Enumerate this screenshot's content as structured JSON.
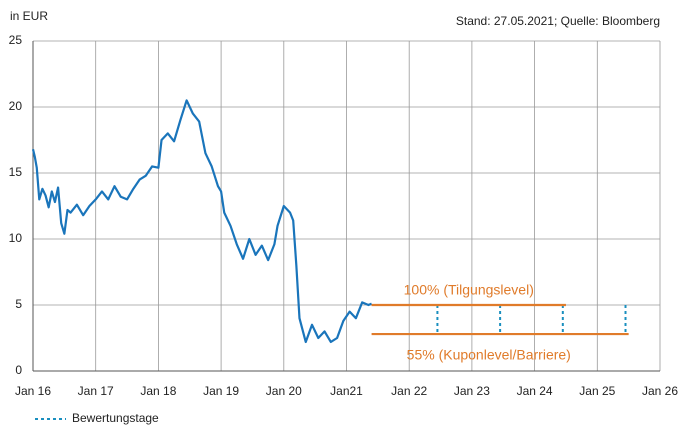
{
  "chart_data": {
    "type": "line",
    "unit_label": "in EUR",
    "source": "Stand: 27.05.2021; Quelle: Bloomberg",
    "xlim": [
      2016,
      2026
    ],
    "xticks": [
      {
        "value": 2016,
        "label": "Jan 16"
      },
      {
        "value": 2017,
        "label": "Jan 17"
      },
      {
        "value": 2018,
        "label": "Jan 18"
      },
      {
        "value": 2019,
        "label": "Jan 19"
      },
      {
        "value": 2020,
        "label": "Jan 20"
      },
      {
        "value": 2021,
        "label": "Jan21"
      },
      {
        "value": 2022,
        "label": "Jan 22"
      },
      {
        "value": 2023,
        "label": "Jan 23"
      },
      {
        "value": 2024,
        "label": "Jan 24"
      },
      {
        "value": 2025,
        "label": "Jan 25"
      },
      {
        "value": 2026,
        "label": "Jan 26"
      }
    ],
    "ylim": [
      0,
      25
    ],
    "yticks": [
      0,
      5,
      10,
      15,
      20,
      25
    ],
    "grid": true,
    "series": [
      {
        "color": "#1a75bb",
        "x": [
          2016.0,
          2016.03,
          2016.06,
          2016.1,
          2016.15,
          2016.2,
          2016.25,
          2016.3,
          2016.35,
          2016.4,
          2016.45,
          2016.5,
          2016.55,
          2016.6,
          2016.7,
          2016.8,
          2016.9,
          2017.0,
          2017.1,
          2017.2,
          2017.3,
          2017.4,
          2017.5,
          2017.6,
          2017.7,
          2017.8,
          2017.9,
          2018.0,
          2018.05,
          2018.15,
          2018.25,
          2018.35,
          2018.45,
          2018.55,
          2018.65,
          2018.75,
          2018.85,
          2018.95,
          2019.0,
          2019.05,
          2019.15,
          2019.25,
          2019.35,
          2019.45,
          2019.55,
          2019.65,
          2019.75,
          2019.85,
          2019.9,
          2020.0,
          2020.1,
          2020.15,
          2020.2,
          2020.25,
          2020.35,
          2020.45,
          2020.55,
          2020.65,
          2020.75,
          2020.85,
          2020.95,
          2021.05,
          2021.15,
          2021.25,
          2021.35,
          2021.4
        ],
        "values": [
          16.8,
          16.2,
          15.4,
          13.0,
          13.8,
          13.3,
          12.4,
          13.6,
          12.8,
          13.9,
          11.2,
          10.4,
          12.2,
          12.0,
          12.6,
          11.8,
          12.5,
          13.0,
          13.6,
          13.0,
          14.0,
          13.2,
          13.0,
          13.8,
          14.5,
          14.8,
          15.5,
          15.4,
          17.5,
          18.0,
          17.4,
          19.0,
          20.5,
          19.5,
          18.9,
          16.5,
          15.5,
          14.0,
          13.6,
          12.0,
          11.0,
          9.6,
          8.5,
          10.0,
          8.8,
          9.5,
          8.4,
          9.6,
          11.0,
          12.5,
          12.0,
          11.4,
          8.0,
          4.0,
          2.2,
          3.5,
          2.5,
          3.0,
          2.2,
          2.5,
          3.8,
          4.5,
          4.0,
          5.2,
          5.0,
          5.1
        ]
      }
    ],
    "levels": [
      {
        "label": "100% (Tilgungslevel)",
        "value": 5.0,
        "x": [
          2021.4,
          2024.5
        ],
        "color": "#e07b2a"
      },
      {
        "label": "55% (Kuponlevel/Barriere)",
        "value": 2.8,
        "x": [
          2021.4,
          2025.5
        ],
        "color": "#e07b2a"
      }
    ],
    "valuation_dates": {
      "name": "Bewertungstage",
      "color": "#1a8fbf",
      "x": [
        2022.45,
        2023.45,
        2024.45,
        2025.45
      ]
    }
  }
}
